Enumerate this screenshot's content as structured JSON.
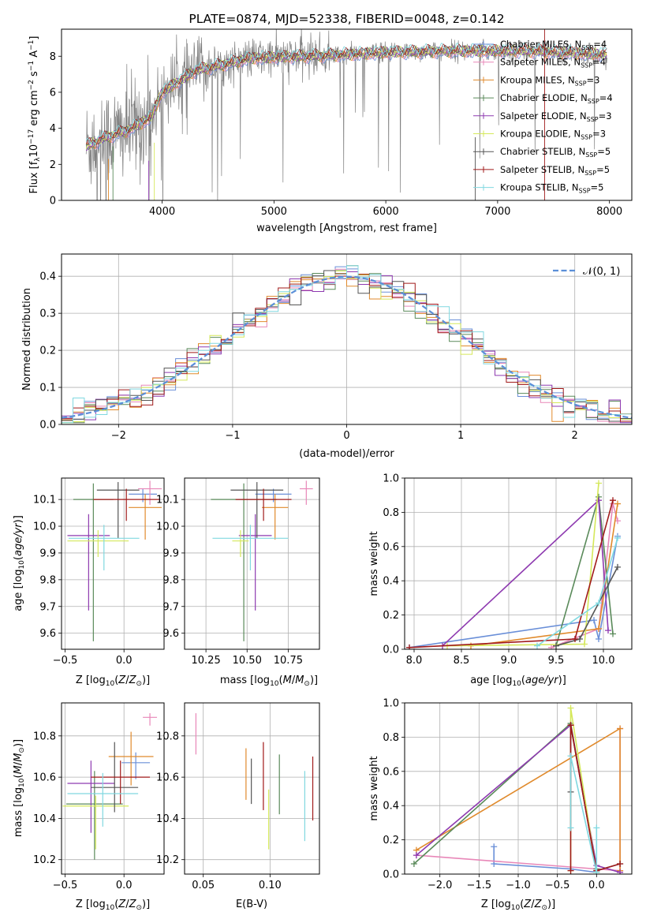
{
  "colors": {
    "grid": "#b0b0b0",
    "spectrum": "#808080",
    "gaussian": "#5b8fd8",
    "series": [
      "#6a8fd8",
      "#e887b8",
      "#e08a2c",
      "#5a8a5a",
      "#8e3ab0",
      "#d5e85a",
      "#555555",
      "#a01a1a",
      "#80d8e0"
    ]
  },
  "legend_entries": [
    {
      "model": "Chabrier MILES, N",
      "sub": "SSP",
      "n": "=4"
    },
    {
      "model": "Salpeter MILES, N",
      "sub": "SSP",
      "n": "=4"
    },
    {
      "model": "Kroupa MILES, N",
      "sub": "SSP",
      "n": "=3"
    },
    {
      "model": "Chabrier ELODIE, N",
      "sub": "SSP",
      "n": "=4"
    },
    {
      "model": "Salpeter ELODIE, N",
      "sub": "SSP",
      "n": "=3"
    },
    {
      "model": "Kroupa ELODIE, N",
      "sub": "SSP",
      "n": "=3"
    },
    {
      "model": "Chabrier STELIB, N",
      "sub": "SSP",
      "n": "=5"
    },
    {
      "model": "Salpeter STELIB, N",
      "sub": "SSP",
      "n": "=5"
    },
    {
      "model": "Kroupa STELIB, N",
      "sub": "SSP",
      "n": "=5"
    }
  ],
  "chart_data": [
    {
      "id": "spectrum",
      "type": "line",
      "title": "PLATE=0874, MJD=52338, FIBERID=0048, z=0.142",
      "xlabel": "wavelength [Angstrom, rest frame]",
      "ylabel_parts": [
        "Flux [f",
        "λ",
        "10",
        "−17",
        " erg cm",
        "−2",
        " s",
        "−1",
        " A",
        "−1",
        "]"
      ],
      "xlim": [
        3100,
        8200
      ],
      "ylim": [
        0,
        9.5
      ],
      "xticks": [
        4000,
        5000,
        6000,
        7000,
        8000
      ],
      "yticks": [
        0,
        2,
        4,
        6,
        8
      ],
      "x_range": [
        3320,
        7980
      ],
      "continuum_knots": [
        [
          3320,
          3.0
        ],
        [
          3500,
          3.5
        ],
        [
          3700,
          3.9
        ],
        [
          3900,
          4.6
        ],
        [
          4000,
          6.0
        ],
        [
          4300,
          7.2
        ],
        [
          4800,
          7.9
        ],
        [
          5300,
          8.0
        ],
        [
          6000,
          8.2
        ],
        [
          6600,
          8.3
        ],
        [
          7200,
          8.3
        ],
        [
          7980,
          8.1
        ]
      ],
      "model_curves": 9,
      "grid": false,
      "legend_placement": "upper right"
    },
    {
      "id": "residuals",
      "type": "histogram",
      "xlabel": "(data-model)/error",
      "ylabel": "Normed distribution",
      "xlim": [
        -2.5,
        2.5
      ],
      "ylim": [
        0,
        0.46
      ],
      "xticks": [
        -2,
        -1,
        0,
        1,
        2
      ],
      "yticks": [
        0,
        0.1,
        0.2,
        0.3,
        0.4
      ],
      "bin_width": 0.1,
      "reference_curve": "normal(0,1)",
      "reference_label": "𝒩(0, 1)",
      "grid": true,
      "legend_placement": "upper right"
    },
    {
      "id": "age_vs_Z",
      "type": "errorbar",
      "xlabel": "Z [log10(Z/Z⊙)]",
      "ylabel": "age  [log10(age/yr)]",
      "xlim": [
        -0.53,
        0.34
      ],
      "ylim": [
        9.54,
        10.18
      ],
      "xticks": [
        -0.5,
        0.0
      ],
      "yticks": [
        9.6,
        9.7,
        9.8,
        9.9,
        10.0,
        10.1
      ],
      "grid": true,
      "points": [
        {
          "x": 0.16,
          "y": 10.12,
          "xerr": 0.12,
          "yerr": [
            0.03,
            0.02
          ]
        },
        {
          "x": 0.22,
          "y": 10.14,
          "xerr": 0.1,
          "yerr": [
            0.06,
            0.03
          ]
        },
        {
          "x": 0.18,
          "y": 10.07,
          "xerr": 0.14,
          "yerr": [
            0.12,
            0.05
          ]
        },
        {
          "x": -0.26,
          "y": 10.1,
          "xerr": 0.17,
          "yerr": [
            0.53,
            0.06
          ]
        },
        {
          "x": -0.3,
          "y": 9.965,
          "xerr": 0.18,
          "yerr": [
            0.28,
            0.08
          ]
        },
        {
          "x": -0.22,
          "y": 9.945,
          "xerr": 0.26,
          "yerr": [
            0.06,
            0.04
          ]
        },
        {
          "x": -0.05,
          "y": 10.135,
          "xerr": 0.18,
          "yerr": [
            0.18,
            0.03
          ]
        },
        {
          "x": 0.02,
          "y": 10.1,
          "xerr": 0.28,
          "yerr": [
            0.08,
            0.04
          ]
        },
        {
          "x": -0.17,
          "y": 9.955,
          "xerr": 0.3,
          "yerr": [
            0.12,
            0.05
          ]
        }
      ]
    },
    {
      "id": "age_vs_mass",
      "type": "errorbar",
      "xlabel": "mass [log10(M/M⊙)]",
      "ylabel": "",
      "xlim": [
        10.12,
        10.94
      ],
      "ylim": [
        9.54,
        10.18
      ],
      "xticks": [
        10.25,
        10.5,
        10.75
      ],
      "yticks": [
        9.6,
        9.7,
        9.8,
        9.9,
        10.0,
        10.1
      ],
      "grid": true,
      "points": [
        {
          "x": 10.66,
          "y": 10.12,
          "xerr": 0.11,
          "yerr": [
            0.03,
            0.02
          ]
        },
        {
          "x": 10.86,
          "y": 10.14,
          "xerr": 0.04,
          "yerr": [
            0.06,
            0.03
          ]
        },
        {
          "x": 10.67,
          "y": 10.07,
          "xerr": 0.08,
          "yerr": [
            0.12,
            0.05
          ]
        },
        {
          "x": 10.48,
          "y": 10.1,
          "xerr": 0.2,
          "yerr": [
            0.53,
            0.06
          ]
        },
        {
          "x": 10.55,
          "y": 9.965,
          "xerr": 0.1,
          "yerr": [
            0.28,
            0.08
          ]
        },
        {
          "x": 10.46,
          "y": 9.945,
          "xerr": 0.05,
          "yerr": [
            0.06,
            0.04
          ]
        },
        {
          "x": 10.56,
          "y": 10.135,
          "xerr": 0.16,
          "yerr": [
            0.18,
            0.03
          ]
        },
        {
          "x": 10.6,
          "y": 10.1,
          "xerr": 0.17,
          "yerr": [
            0.08,
            0.04
          ]
        },
        {
          "x": 10.52,
          "y": 9.955,
          "xerr": 0.23,
          "yerr": [
            0.12,
            0.05
          ]
        }
      ]
    },
    {
      "id": "weight_vs_age",
      "type": "line",
      "xlabel": "age  [log10(age/yr)]",
      "ylabel": "mass weight",
      "xlim": [
        7.9,
        10.3
      ],
      "ylim": [
        0,
        1
      ],
      "xticks": [
        8.0,
        8.5,
        9.0,
        9.5,
        10.0
      ],
      "yticks": [
        0,
        0.2,
        0.4,
        0.6,
        0.8,
        1.0
      ],
      "grid": true,
      "series": [
        {
          "x": [
            7.95,
            9.9,
            9.95,
            10.15
          ],
          "y": [
            0.01,
            0.17,
            0.06,
            0.66
          ]
        },
        {
          "x": [
            9.45,
            9.95,
            10.1,
            10.15
          ],
          "y": [
            0.01,
            0.12,
            0.85,
            0.75
          ]
        },
        {
          "x": [
            8.6,
            9.95,
            10.15
          ],
          "y": [
            0.02,
            0.12,
            0.85
          ]
        },
        {
          "x": [
            9.5,
            9.95,
            10.1
          ],
          "y": [
            0.02,
            0.89,
            0.09
          ]
        },
        {
          "x": [
            8.3,
            9.95,
            10.05
          ],
          "y": [
            0.02,
            0.87,
            0.11
          ]
        },
        {
          "x": [
            8.35,
            9.8,
            9.95
          ],
          "y": [
            0.02,
            0.03,
            0.97
          ]
        },
        {
          "x": [
            9.5,
            9.75,
            10.15
          ],
          "y": [
            0.02,
            0.06,
            0.48
          ]
        },
        {
          "x": [
            7.95,
            9.7,
            10.1
          ],
          "y": [
            0.01,
            0.06,
            0.87
          ]
        },
        {
          "x": [
            9.3,
            9.95,
            10.15
          ],
          "y": [
            0.02,
            0.27,
            0.65
          ]
        }
      ]
    },
    {
      "id": "mass_vs_Z",
      "type": "errorbar",
      "xlabel": "Z [log10(Z/Z⊙)]",
      "ylabel": "mass [log10(M/M⊙)]",
      "xlim": [
        -0.53,
        0.34
      ],
      "ylim": [
        10.13,
        10.96
      ],
      "xticks": [
        -0.5,
        0.0
      ],
      "yticks": [
        10.2,
        10.4,
        10.6,
        10.8
      ],
      "grid": true,
      "points": [
        {
          "x": 0.1,
          "y": 10.67,
          "xerr": 0.12,
          "yerr": [
            0.08,
            0.05
          ]
        },
        {
          "x": 0.22,
          "y": 10.89,
          "xerr": 0.06,
          "yerr": [
            0.04,
            0.02
          ]
        },
        {
          "x": 0.06,
          "y": 10.7,
          "xerr": 0.19,
          "yerr": [
            0.14,
            0.12
          ]
        },
        {
          "x": -0.25,
          "y": 10.47,
          "xerr": 0.24,
          "yerr": [
            0.27,
            0.16
          ]
        },
        {
          "x": -0.28,
          "y": 10.57,
          "xerr": 0.2,
          "yerr": [
            0.24,
            0.11
          ]
        },
        {
          "x": -0.24,
          "y": 10.46,
          "xerr": 0.28,
          "yerr": [
            0.21,
            0.05
          ]
        },
        {
          "x": -0.08,
          "y": 10.55,
          "xerr": 0.2,
          "yerr": [
            0.12,
            0.22
          ]
        },
        {
          "x": -0.03,
          "y": 10.6,
          "xerr": 0.25,
          "yerr": [
            0.13,
            0.08
          ]
        },
        {
          "x": -0.18,
          "y": 10.52,
          "xerr": 0.3,
          "yerr": [
            0.16,
            0.1
          ]
        }
      ]
    },
    {
      "id": "mass_vs_ebv",
      "type": "errorbar",
      "xlabel": "E(B-V)",
      "ylabel": "",
      "xlim": [
        0.036,
        0.137
      ],
      "ylim": [
        10.13,
        10.96
      ],
      "xticks": [
        0.05,
        0.1
      ],
      "yticks": [
        10.2,
        10.4,
        10.6,
        10.8
      ],
      "grid": true,
      "points": [
        {
          "x": 0.0445,
          "y": 10.81,
          "yerr": [
            0.1,
            0.1
          ]
        },
        {
          "x": 0.082,
          "y": 10.61,
          "yerr": [
            0.12,
            0.13
          ]
        },
        {
          "x": 0.086,
          "y": 10.56,
          "yerr": [
            0.09,
            0.13
          ]
        },
        {
          "x": 0.095,
          "y": 10.59,
          "yerr": [
            0.15,
            0.18
          ]
        },
        {
          "x": 0.099,
          "y": 10.49,
          "yerr": [
            0.24,
            0.05
          ]
        },
        {
          "x": 0.107,
          "y": 10.52,
          "yerr": [
            0.1,
            0.19
          ]
        },
        {
          "x": 0.126,
          "y": 10.46,
          "yerr": [
            0.17,
            0.17
          ]
        },
        {
          "x": 0.132,
          "y": 10.54,
          "yerr": [
            0.15,
            0.16
          ]
        }
      ]
    },
    {
      "id": "weight_vs_Z",
      "type": "line",
      "xlabel": "Z [log10(Z/Z⊙)]",
      "ylabel": "mass weight",
      "xlim": [
        -2.45,
        0.45
      ],
      "ylim": [
        0,
        1
      ],
      "xticks": [
        -2.0,
        -1.5,
        -1.0,
        -0.5,
        0.0
      ],
      "yticks": [
        0,
        0.2,
        0.4,
        0.6,
        0.8,
        1.0
      ],
      "grid": true,
      "series": [
        {
          "x": [
            -1.31,
            -1.31,
            -0.33,
            0.0
          ],
          "y": [
            0.16,
            0.06,
            0.03,
            0.01
          ]
        },
        {
          "x": [
            -2.3,
            0.0,
            0.3,
            0.3
          ],
          "y": [
            0.11,
            0.03,
            0.02,
            0.85
          ]
        },
        {
          "x": [
            -2.3,
            0.3,
            0.3
          ],
          "y": [
            0.14,
            0.85,
            0.02
          ]
        },
        {
          "x": [
            -2.33,
            -0.33,
            0.0
          ],
          "y": [
            0.06,
            0.88,
            0.03
          ]
        },
        {
          "x": [
            -2.3,
            -0.33,
            0.0,
            0.3
          ],
          "y": [
            0.11,
            0.87,
            0.05,
            0.01
          ]
        },
        {
          "x": [
            -0.33,
            -0.33,
            0.0
          ],
          "y": [
            0.02,
            0.97,
            0.01
          ]
        },
        {
          "x": [
            -0.33,
            -0.33,
            0.0,
            0.3
          ],
          "y": [
            0.48,
            0.87,
            0.02,
            0.06
          ]
        },
        {
          "x": [
            -0.33,
            -0.33,
            0.0,
            0.3
          ],
          "y": [
            0.02,
            0.87,
            0.02,
            0.06
          ]
        },
        {
          "x": [
            -0.33,
            -0.33,
            0.0,
            0.0
          ],
          "y": [
            0.27,
            0.69,
            0.01,
            0.27
          ]
        }
      ]
    }
  ]
}
